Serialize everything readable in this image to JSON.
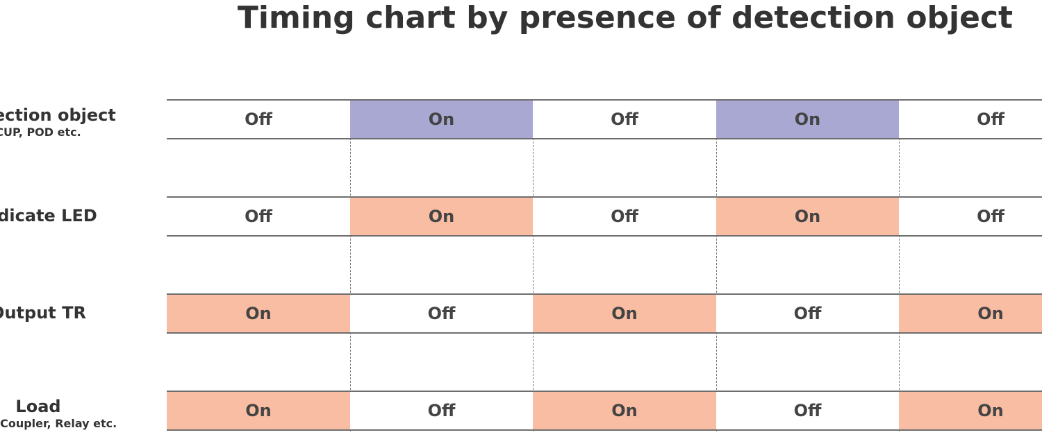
{
  "title": "Timing chart by presence of detection object",
  "rows": [
    {
      "label": "Detection object",
      "sublabel": "CUP, POD etc.",
      "states": [
        "Off",
        "On",
        "Off",
        "On",
        "Off"
      ],
      "on_color": "#a8a8d3"
    },
    {
      "label": "Indicate LED",
      "sublabel": "",
      "states": [
        "Off",
        "On",
        "Off",
        "On",
        "Off"
      ],
      "on_color": "#f8bda2"
    },
    {
      "label": "Output TR",
      "sublabel": "",
      "states": [
        "On",
        "Off",
        "On",
        "Off",
        "On"
      ],
      "on_color": "#f8bda2"
    },
    {
      "label": "Load",
      "sublabel": "Photo Coupler, Relay etc.",
      "states": [
        "On",
        "Off",
        "On",
        "Off",
        "On"
      ],
      "on_color": "#f8bda2"
    }
  ],
  "off_color": "#ffffff",
  "line_color": "#6e6e6e"
}
